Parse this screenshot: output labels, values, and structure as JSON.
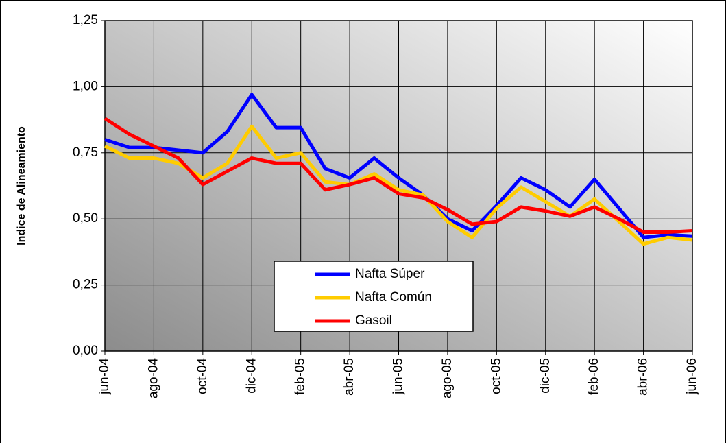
{
  "chart_data": {
    "type": "line",
    "y_label": "Indice de Alineamiento",
    "categories": [
      "jun-04",
      null,
      "ago-04",
      null,
      "oct-04",
      null,
      "dic-04",
      null,
      "feb-05",
      null,
      "abr-05",
      null,
      "jun-05",
      null,
      "ago-05",
      null,
      "oct-05",
      null,
      "dic-05",
      null,
      "feb-06",
      null,
      "abr-06",
      null,
      "jun-06"
    ],
    "series": [
      {
        "name": "Nafta Súper",
        "color": "#0000ff",
        "values": [
          0.8,
          0.77,
          0.77,
          0.76,
          0.75,
          0.83,
          0.97,
          0.845,
          0.845,
          0.69,
          0.655,
          0.73,
          0.655,
          0.59,
          0.5,
          0.455,
          0.55,
          0.655,
          0.61,
          0.545,
          0.65,
          0.54,
          0.43,
          0.44,
          0.435
        ]
      },
      {
        "name": "Nafta Común",
        "color": "#ffcc00",
        "values": [
          0.775,
          0.73,
          0.73,
          0.71,
          0.655,
          0.71,
          0.85,
          0.73,
          0.75,
          0.64,
          0.63,
          0.67,
          0.61,
          0.59,
          0.49,
          0.43,
          0.54,
          0.62,
          0.565,
          0.51,
          0.575,
          0.49,
          0.405,
          0.43,
          0.42
        ]
      },
      {
        "name": "Gasoil",
        "color": "#ff0000",
        "values": [
          0.88,
          0.82,
          0.775,
          0.73,
          0.63,
          0.68,
          0.73,
          0.71,
          0.71,
          0.61,
          0.63,
          0.655,
          0.595,
          0.58,
          0.535,
          0.48,
          0.49,
          0.545,
          0.53,
          0.51,
          0.545,
          0.5,
          0.45,
          0.45,
          0.455
        ]
      }
    ],
    "ylim": [
      0,
      1.25
    ],
    "yticks": [
      {
        "value": 0,
        "label": "0,00"
      },
      {
        "value": 0.25,
        "label": "0,25"
      },
      {
        "value": 0.5,
        "label": "0,50"
      },
      {
        "value": 0.75,
        "label": "0,75"
      },
      {
        "value": 1,
        "label": "1,00"
      },
      {
        "value": 1.25,
        "label": "1,25"
      }
    ],
    "grid": true
  }
}
